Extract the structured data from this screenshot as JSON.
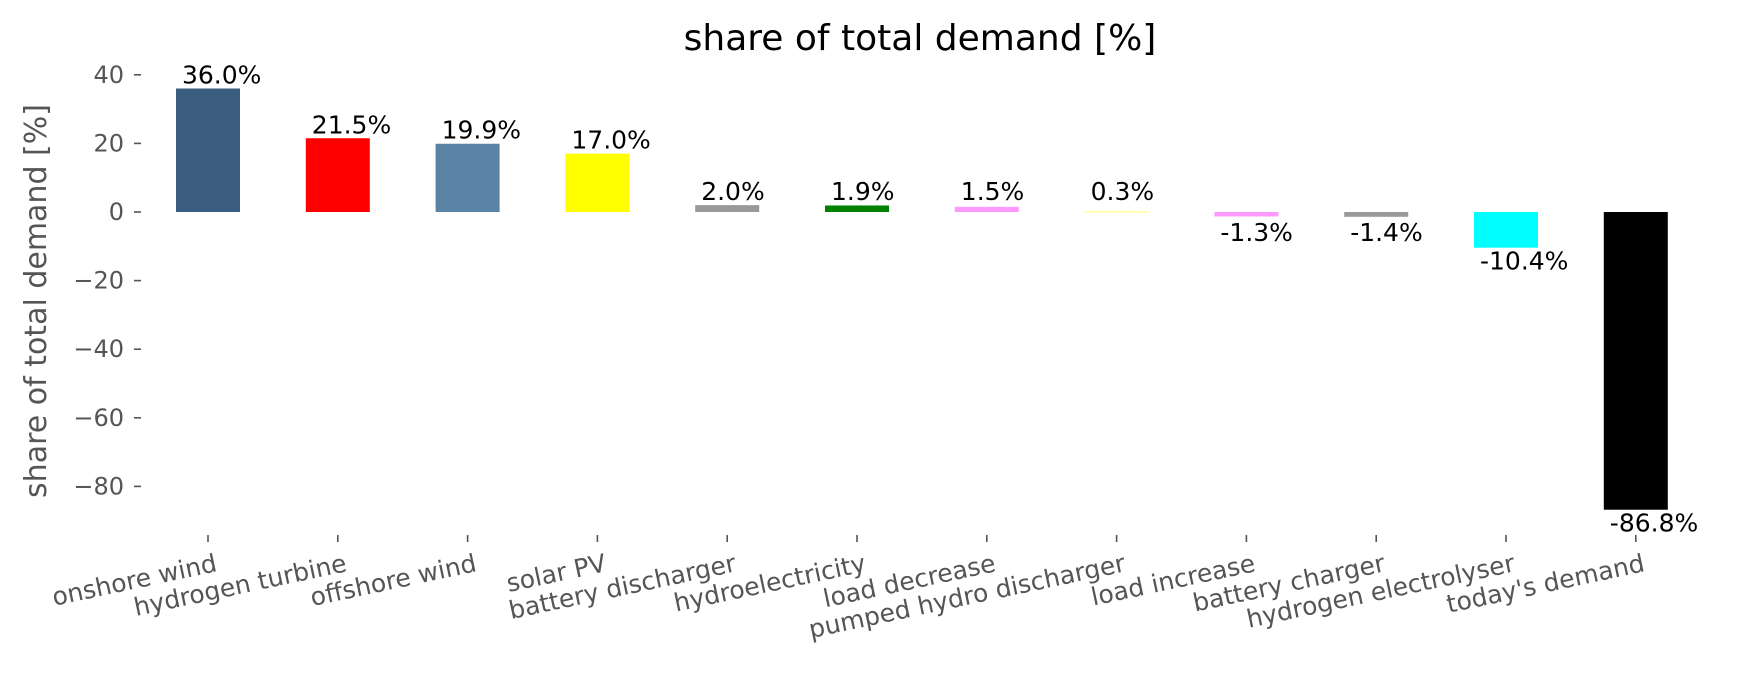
{
  "chart_data": {
    "type": "bar",
    "title": "share of total demand [%]",
    "xlabel": "",
    "ylabel": "share of total demand [%]",
    "ylim": [
      -95,
      43
    ],
    "yticks": [
      40,
      20,
      0,
      -20,
      -40,
      -60,
      -80
    ],
    "ytick_labels": [
      "40",
      "20",
      "0",
      "−20",
      "−40",
      "−60",
      "−80"
    ],
    "grid": false,
    "categories": [
      "onshore wind",
      "hydrogen turbine",
      "offshore wind",
      "solar PV",
      "battery discharger",
      "hydroelectricity",
      "load decrease",
      "pumped hydro discharger",
      "load increase",
      "battery charger",
      "hydrogen electrolyser",
      "today's demand"
    ],
    "values": [
      36.0,
      21.5,
      19.9,
      17.0,
      2.0,
      1.9,
      1.5,
      0.3,
      -1.3,
      -1.4,
      -10.4,
      -86.8
    ],
    "data_labels": [
      "36.0%",
      "21.5%",
      "19.9%",
      "17.0%",
      "2.0%",
      "1.9%",
      "1.5%",
      "0.3%",
      "-1.3%",
      "-1.4%",
      "-10.4%",
      "-86.8%"
    ],
    "colors": [
      "#3b5e80",
      "#ff0000",
      "#5b83a6",
      "#ffff00",
      "#999999",
      "#008000",
      "#ff99ff",
      "#ffff99",
      "#ff99ff",
      "#999999",
      "#00ffff",
      "#000000"
    ]
  }
}
